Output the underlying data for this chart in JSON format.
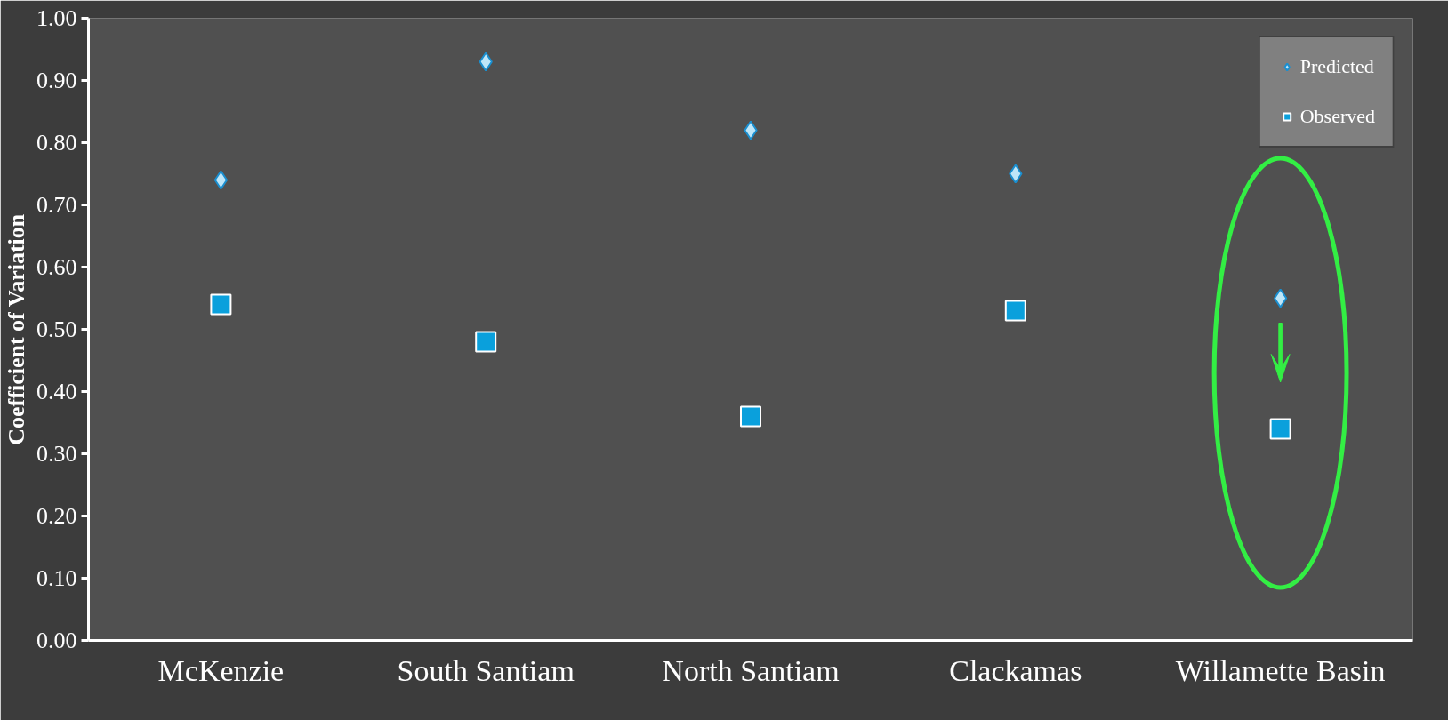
{
  "chart_data": {
    "type": "scatter",
    "ylabel": "Coefficient of Variation",
    "categories": [
      "McKenzie",
      "South Santiam",
      "North Santiam",
      "Clackamas",
      "Willamette Basin"
    ],
    "series": [
      {
        "name": "Predicted",
        "color": "#bfe6f8",
        "marker": "diamond",
        "values": [
          0.74,
          0.93,
          0.82,
          0.75,
          0.55
        ]
      },
      {
        "name": "Observed",
        "color": "#0aa0dc",
        "marker": "square",
        "values": [
          0.54,
          0.48,
          0.36,
          0.53,
          0.34
        ]
      }
    ],
    "ylim": [
      0,
      1
    ],
    "yticks": [
      {
        "value": 0,
        "label": "0.00"
      },
      {
        "value": 0.1,
        "label": "0.10"
      },
      {
        "value": 0.2,
        "label": "0.20"
      },
      {
        "value": 0.3,
        "label": "0.30"
      },
      {
        "value": 0.4,
        "label": "0.40"
      },
      {
        "value": 0.5,
        "label": "0.50"
      },
      {
        "value": 0.6,
        "label": "0.60"
      },
      {
        "value": 0.7,
        "label": "0.70"
      },
      {
        "value": 0.8,
        "label": "0.80"
      },
      {
        "value": 0.9,
        "label": "0.90"
      },
      {
        "value": 1,
        "label": "1.00"
      }
    ],
    "grid": false,
    "legend": "top right"
  }
}
